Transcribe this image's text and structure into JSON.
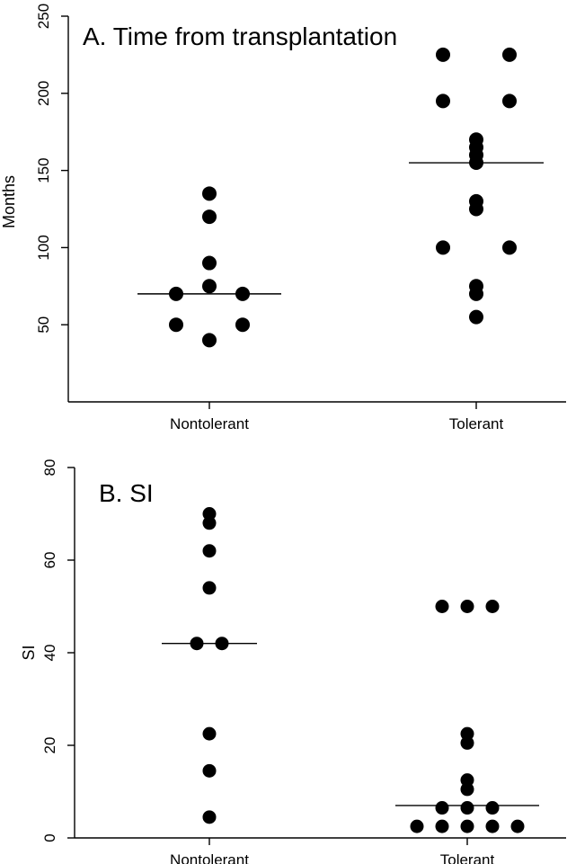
{
  "chart_data": [
    {
      "type": "scatter",
      "title": "A. Time from transplantation",
      "xlabel": "",
      "ylabel": "Months",
      "categories": [
        "Nontolerant",
        "Tolerant"
      ],
      "ylim": [
        0,
        250
      ],
      "yticks": [
        50,
        100,
        150,
        200,
        250
      ],
      "grid": false,
      "series": [
        {
          "category": "Nontolerant",
          "points": [
            {
              "offset": 0,
              "y": 135
            },
            {
              "offset": 0,
              "y": 120
            },
            {
              "offset": 0,
              "y": 90
            },
            {
              "offset": 0,
              "y": 75
            },
            {
              "offset": -1,
              "y": 70
            },
            {
              "offset": 1,
              "y": 70
            },
            {
              "offset": -1,
              "y": 50
            },
            {
              "offset": 1,
              "y": 50
            },
            {
              "offset": 0,
              "y": 40
            }
          ],
          "median": 70
        },
        {
          "category": "Tolerant",
          "points": [
            {
              "offset": -1,
              "y": 225
            },
            {
              "offset": 1,
              "y": 225
            },
            {
              "offset": -1,
              "y": 195
            },
            {
              "offset": 1,
              "y": 195
            },
            {
              "offset": 0,
              "y": 170
            },
            {
              "offset": 0,
              "y": 165
            },
            {
              "offset": 0,
              "y": 160
            },
            {
              "offset": 0,
              "y": 155
            },
            {
              "offset": 0,
              "y": 130
            },
            {
              "offset": 0,
              "y": 125
            },
            {
              "offset": -1,
              "y": 100
            },
            {
              "offset": 1,
              "y": 100
            },
            {
              "offset": 0,
              "y": 75
            },
            {
              "offset": 0,
              "y": 70
            },
            {
              "offset": 0,
              "y": 55
            }
          ],
          "median": 155
        }
      ]
    },
    {
      "type": "scatter",
      "title": "B. SI",
      "xlabel": "",
      "ylabel": "SI",
      "categories": [
        "Nontolerant",
        "Tolerant"
      ],
      "ylim": [
        0,
        80
      ],
      "yticks": [
        0,
        20,
        40,
        60,
        80
      ],
      "grid": false,
      "series": [
        {
          "category": "Nontolerant",
          "points": [
            {
              "offset": 0,
              "y": 70
            },
            {
              "offset": 0,
              "y": 68
            },
            {
              "offset": 0,
              "y": 62
            },
            {
              "offset": 0,
              "y": 54
            },
            {
              "offset": -0.5,
              "y": 42
            },
            {
              "offset": 0.5,
              "y": 42
            },
            {
              "offset": 0,
              "y": 22.5
            },
            {
              "offset": 0,
              "y": 14.5
            },
            {
              "offset": 0,
              "y": 4.5
            }
          ],
          "median": 42
        },
        {
          "category": "Tolerant",
          "points": [
            {
              "offset": -1,
              "y": 50
            },
            {
              "offset": 0,
              "y": 50
            },
            {
              "offset": 1,
              "y": 50
            },
            {
              "offset": 0,
              "y": 22.5
            },
            {
              "offset": 0,
              "y": 20.5
            },
            {
              "offset": 0,
              "y": 12.5
            },
            {
              "offset": 0,
              "y": 10.5
            },
            {
              "offset": -1,
              "y": 6.5
            },
            {
              "offset": 0,
              "y": 6.5
            },
            {
              "offset": 1,
              "y": 6.5
            },
            {
              "offset": -2,
              "y": 2.5
            },
            {
              "offset": -1,
              "y": 2.5
            },
            {
              "offset": 0,
              "y": 2.5
            },
            {
              "offset": 1,
              "y": 2.5
            },
            {
              "offset": 2,
              "y": 2.5
            }
          ],
          "median": 7
        }
      ]
    }
  ]
}
